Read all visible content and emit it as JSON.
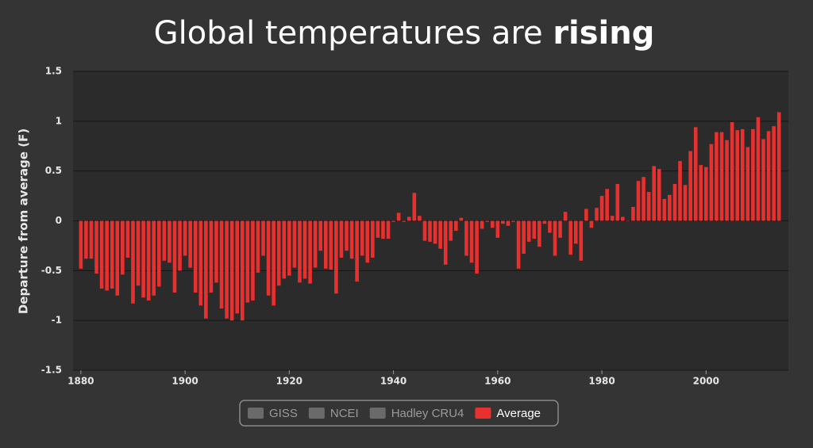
{
  "chart_data": {
    "type": "bar",
    "title": {
      "text": "Global temperatures are",
      "emphasis": "rising"
    },
    "y_label": "Departure from average (F)",
    "x": [
      1880,
      1881,
      1882,
      1883,
      1884,
      1885,
      1886,
      1887,
      1888,
      1889,
      1890,
      1891,
      1892,
      1893,
      1894,
      1895,
      1896,
      1897,
      1898,
      1899,
      1900,
      1901,
      1902,
      1903,
      1904,
      1905,
      1906,
      1907,
      1908,
      1909,
      1910,
      1911,
      1912,
      1913,
      1914,
      1915,
      1916,
      1917,
      1918,
      1919,
      1920,
      1921,
      1922,
      1923,
      1924,
      1925,
      1926,
      1927,
      1928,
      1929,
      1930,
      1931,
      1932,
      1933,
      1934,
      1935,
      1936,
      1937,
      1938,
      1939,
      1940,
      1941,
      1942,
      1943,
      1944,
      1945,
      1946,
      1947,
      1948,
      1949,
      1950,
      1951,
      1952,
      1953,
      1954,
      1955,
      1956,
      1957,
      1958,
      1959,
      1960,
      1961,
      1962,
      1963,
      1964,
      1965,
      1966,
      1967,
      1968,
      1969,
      1970,
      1971,
      1972,
      1973,
      1974,
      1975,
      1976,
      1977,
      1978,
      1979,
      1980,
      1981,
      1982,
      1983,
      1984,
      1985,
      1986,
      1987,
      1988,
      1989,
      1990,
      1991,
      1992,
      1993,
      1994,
      1995,
      1996,
      1997,
      1998,
      1999,
      2000,
      2001,
      2002,
      2003,
      2004,
      2005,
      2006,
      2007,
      2008,
      2009,
      2010,
      2011,
      2012,
      2013,
      2014
    ],
    "series": [
      {
        "name": "Average",
        "color": "#e8302e",
        "values": [
          -0.48,
          -0.38,
          -0.38,
          -0.53,
          -0.68,
          -0.7,
          -0.68,
          -0.75,
          -0.54,
          -0.37,
          -0.83,
          -0.65,
          -0.77,
          -0.8,
          -0.75,
          -0.66,
          -0.4,
          -0.42,
          -0.72,
          -0.5,
          -0.35,
          -0.47,
          -0.72,
          -0.85,
          -0.98,
          -0.72,
          -0.62,
          -0.88,
          -0.98,
          -1.0,
          -0.93,
          -1.0,
          -0.82,
          -0.8,
          -0.52,
          -0.35,
          -0.75,
          -0.85,
          -0.65,
          -0.58,
          -0.55,
          -0.47,
          -0.62,
          -0.58,
          -0.63,
          -0.47,
          -0.3,
          -0.48,
          -0.49,
          -0.73,
          -0.37,
          -0.3,
          -0.38,
          -0.61,
          -0.35,
          -0.42,
          -0.37,
          -0.17,
          -0.18,
          -0.18,
          -0.01,
          0.08,
          -0.01,
          0.04,
          0.28,
          0.05,
          -0.2,
          -0.21,
          -0.23,
          -0.28,
          -0.44,
          -0.2,
          -0.1,
          0.03,
          -0.35,
          -0.42,
          -0.53,
          -0.08,
          -0.01,
          -0.07,
          -0.17,
          -0.03,
          -0.05,
          -0.01,
          -0.48,
          -0.33,
          -0.21,
          -0.18,
          -0.26,
          -0.03,
          -0.12,
          -0.35,
          -0.17,
          0.09,
          -0.34,
          -0.23,
          -0.4,
          0.12,
          -0.07,
          0.13,
          0.25,
          0.32,
          0.05,
          0.37,
          0.04,
          0.0,
          0.14,
          0.4,
          0.44,
          0.29,
          0.55,
          0.52,
          0.22,
          0.26,
          0.37,
          0.6,
          0.36,
          0.7,
          0.94,
          0.56,
          0.54,
          0.77,
          0.89,
          0.89,
          0.81,
          0.99,
          0.91,
          0.92,
          0.74,
          0.92,
          1.04,
          0.82,
          0.9,
          0.95,
          1.09
        ]
      }
    ],
    "hidden_series": [
      {
        "name": "GISS",
        "color": "#6a6a6a"
      },
      {
        "name": "NCEI",
        "color": "#6a6a6a"
      },
      {
        "name": "Hadley CRU4",
        "color": "#6a6a6a"
      }
    ],
    "xlim": [
      1878.5,
      2015.8
    ],
    "xticks": [
      1880,
      1900,
      1920,
      1940,
      1960,
      1980,
      2000
    ],
    "ylim": [
      -1.5,
      1.5
    ],
    "yticks": [
      1.5,
      1,
      0.5,
      0,
      -0.5,
      -1,
      -1.5
    ],
    "grid": true
  }
}
